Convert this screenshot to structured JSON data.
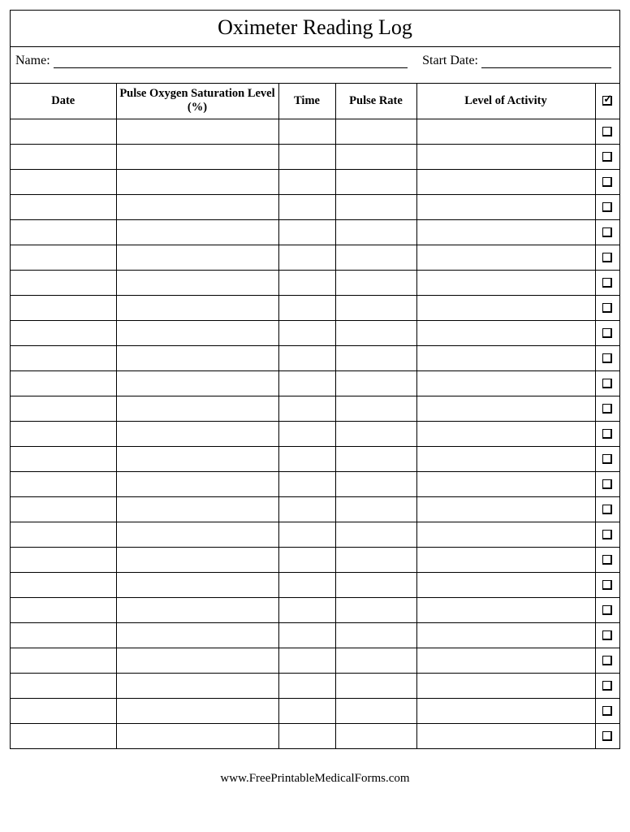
{
  "title": "Oximeter Reading Log",
  "meta": {
    "name_label": "Name:",
    "start_date_label": "Start Date:"
  },
  "table": {
    "columns": {
      "date": "Date",
      "spo2": "Pulse Oxygen Saturation Level (%)",
      "time": "Time",
      "pulse": "Pulse Rate",
      "activity": "Level of Activity"
    },
    "row_count": 25
  },
  "footer": "www.FreePrintableMedicalForms.com"
}
